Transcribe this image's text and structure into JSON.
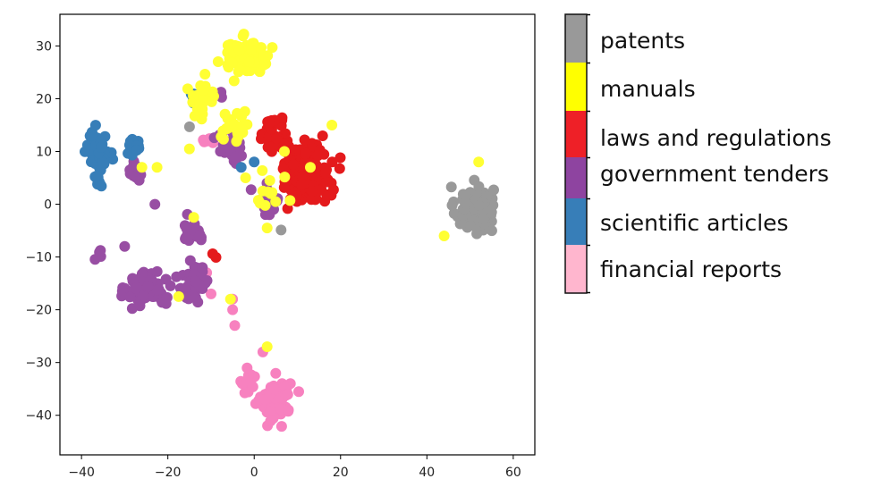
{
  "chart_data": {
    "type": "scatter",
    "title": "",
    "xlabel": "",
    "ylabel": "",
    "xlim": [
      -45,
      65
    ],
    "ylim": [
      -47.5,
      36
    ],
    "x_ticks": [
      -40,
      -20,
      0,
      20,
      40,
      60
    ],
    "y_ticks": [
      30,
      20,
      10,
      0,
      -10,
      -20,
      -30,
      -40
    ],
    "x_tick_labels": [
      "−40",
      "−20",
      "0",
      "20",
      "40",
      "60"
    ],
    "y_tick_labels": [
      "30",
      "20",
      "10",
      "0",
      "−10",
      "−20",
      "−30",
      "−40"
    ],
    "grid": false,
    "legend_placement": "right (colorbar style)",
    "series": [
      {
        "name": "patents",
        "color": "#999999",
        "clusters": [
          {
            "center": [
              51,
              -1
            ],
            "spread": [
              4,
              4
            ],
            "n": 110
          },
          {
            "center": [
              -15,
              15
            ],
            "spread": [
              0.5,
              0.5
            ],
            "n": 1
          },
          {
            "center": [
              6,
              -4.5
            ],
            "spread": [
              0.5,
              0.5
            ],
            "n": 1
          }
        ]
      },
      {
        "name": "manuals",
        "color": "#FFFF33",
        "clusters": [
          {
            "center": [
              -2,
              28
            ],
            "spread": [
              5,
              3
            ],
            "n": 80
          },
          {
            "center": [
              -12,
              20
            ],
            "spread": [
              3,
              3
            ],
            "n": 40
          },
          {
            "center": [
              -4,
              15
            ],
            "spread": [
              3,
              3
            ],
            "n": 20
          },
          {
            "center": [
              4,
              1
            ],
            "spread": [
              3,
              4
            ],
            "n": 12
          }
        ],
        "outliers": [
          [
            52,
            8
          ],
          [
            -17.5,
            -17.5
          ],
          [
            -14,
            -2.5
          ],
          [
            -22.5,
            7
          ],
          [
            -26,
            7
          ],
          [
            7,
            10
          ],
          [
            18,
            15
          ],
          [
            13,
            7
          ],
          [
            3,
            -27
          ],
          [
            -15,
            10.5
          ],
          [
            -5.5,
            -18
          ],
          [
            -2,
            5
          ],
          [
            44,
            -6
          ],
          [
            3,
            -4.5
          ]
        ]
      },
      {
        "name": "laws and regulations",
        "color": "#E41A1C",
        "clusters": [
          {
            "center": [
              12,
              6
            ],
            "spread": [
              5,
              5
            ],
            "n": 170
          },
          {
            "center": [
              5,
              13
            ],
            "spread": [
              3,
              3
            ],
            "n": 40
          },
          {
            "center": [
              -9.5,
              -9
            ],
            "spread": [
              1,
              1
            ],
            "n": 2
          }
        ]
      },
      {
        "name": "government tenders",
        "color": "#984EA3",
        "clusters": [
          {
            "center": [
              -25,
              -16
            ],
            "spread": [
              4,
              3
            ],
            "n": 90
          },
          {
            "center": [
              -14,
              -15
            ],
            "spread": [
              3,
              3
            ],
            "n": 55
          },
          {
            "center": [
              -14,
              -5
            ],
            "spread": [
              2.5,
              2
            ],
            "n": 25
          },
          {
            "center": [
              -27,
              6
            ],
            "spread": [
              2,
              2
            ],
            "n": 12
          },
          {
            "center": [
              -36,
              -9
            ],
            "spread": [
              1,
              1.5
            ],
            "n": 4
          },
          {
            "center": [
              -5,
              10
            ],
            "spread": [
              3,
              3
            ],
            "n": 25
          },
          {
            "center": [
              3,
              1
            ],
            "spread": [
              2.5,
              3
            ],
            "n": 25
          },
          {
            "center": [
              -8,
              21
            ],
            "spread": [
              1,
              1
            ],
            "n": 3
          }
        ],
        "outliers": [
          [
            -23,
            0
          ],
          [
            -30,
            -8
          ],
          [
            -12,
            -12
          ]
        ]
      },
      {
        "name": "scientific articles",
        "color": "#377EB8",
        "clusters": [
          {
            "center": [
              -36,
              10
            ],
            "spread": [
              2,
              3
            ],
            "n": 70
          },
          {
            "center": [
              -28,
              11
            ],
            "spread": [
              2,
              1.5
            ],
            "n": 18
          },
          {
            "center": [
              -36,
              4
            ],
            "spread": [
              1,
              1.5
            ],
            "n": 8
          },
          {
            "center": [
              -14,
              21
            ],
            "spread": [
              1,
              1
            ],
            "n": 4
          }
        ],
        "outliers": [
          [
            -3,
            7
          ],
          [
            0,
            8
          ]
        ]
      },
      {
        "name": "financial reports",
        "color": "#F781BF",
        "clusters": [
          {
            "center": [
              5,
              -37
            ],
            "spread": [
              3,
              3.5
            ],
            "n": 95
          },
          {
            "center": [
              -1.5,
              -34
            ],
            "spread": [
              2,
              2
            ],
            "n": 15
          },
          {
            "center": [
              -10,
              12
            ],
            "spread": [
              1.5,
              0.6
            ],
            "n": 6
          }
        ],
        "outliers": [
          [
            -5,
            -20
          ],
          [
            -4.5,
            -23
          ],
          [
            -5,
            -18
          ],
          [
            -10,
            -17
          ],
          [
            -11.5,
            -15
          ],
          [
            -11,
            -13
          ],
          [
            -11.5,
            -14
          ],
          [
            2,
            -28
          ],
          [
            -12,
            -12
          ]
        ]
      }
    ]
  },
  "legend": {
    "items": [
      {
        "label": "patents",
        "color": "#999999"
      },
      {
        "label": "manuals",
        "color": "#FFFF00"
      },
      {
        "label": "laws and regulations",
        "color": "#EE2027"
      },
      {
        "label": "government tenders",
        "color": "#8E44A0"
      },
      {
        "label": "scientific articles",
        "color": "#377EB8"
      },
      {
        "label": "financial reports",
        "color": "#FFB6CE"
      }
    ]
  }
}
